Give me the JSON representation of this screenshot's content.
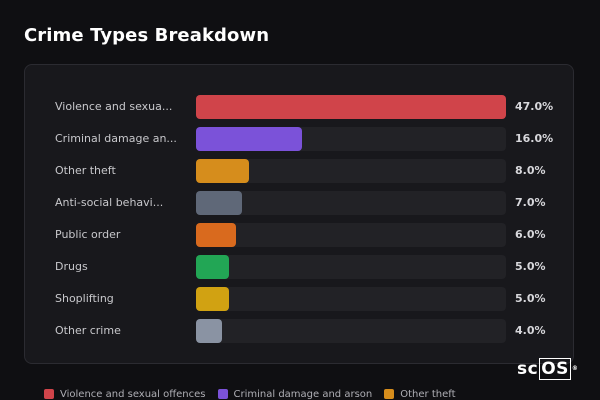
{
  "header": {
    "title": "Crime Types Breakdown"
  },
  "chart_data": {
    "type": "bar",
    "orientation": "horizontal",
    "categories": [
      "Violence and sexua...",
      "Criminal damage an...",
      "Other theft",
      "Anti-social behavi...",
      "Public order",
      "Drugs",
      "Shoplifting",
      "Other crime"
    ],
    "values": [
      47.0,
      16.0,
      8.0,
      7.0,
      6.0,
      5.0,
      5.0,
      4.0
    ],
    "value_labels": [
      "47.0%",
      "16.0%",
      "8.0%",
      "7.0%",
      "6.0%",
      "5.0%",
      "5.0%",
      "4.0%"
    ],
    "colors": [
      "#d0444a",
      "#7b52d9",
      "#d68d1c",
      "#5f6878",
      "#d96a1e",
      "#22a655",
      "#d1a212",
      "#8a93a3"
    ],
    "xlim": [
      0,
      47.0
    ],
    "grid": false
  },
  "legend": {
    "items": [
      {
        "label": "Violence and sexual offences",
        "color": "#d0444a"
      },
      {
        "label": "Criminal damage and arson",
        "color": "#7b52d9"
      },
      {
        "label": "Other theft",
        "color": "#d68d1c"
      }
    ]
  },
  "logo": {
    "text_left": "sc",
    "text_boxed": "OS",
    "reg": "®"
  }
}
